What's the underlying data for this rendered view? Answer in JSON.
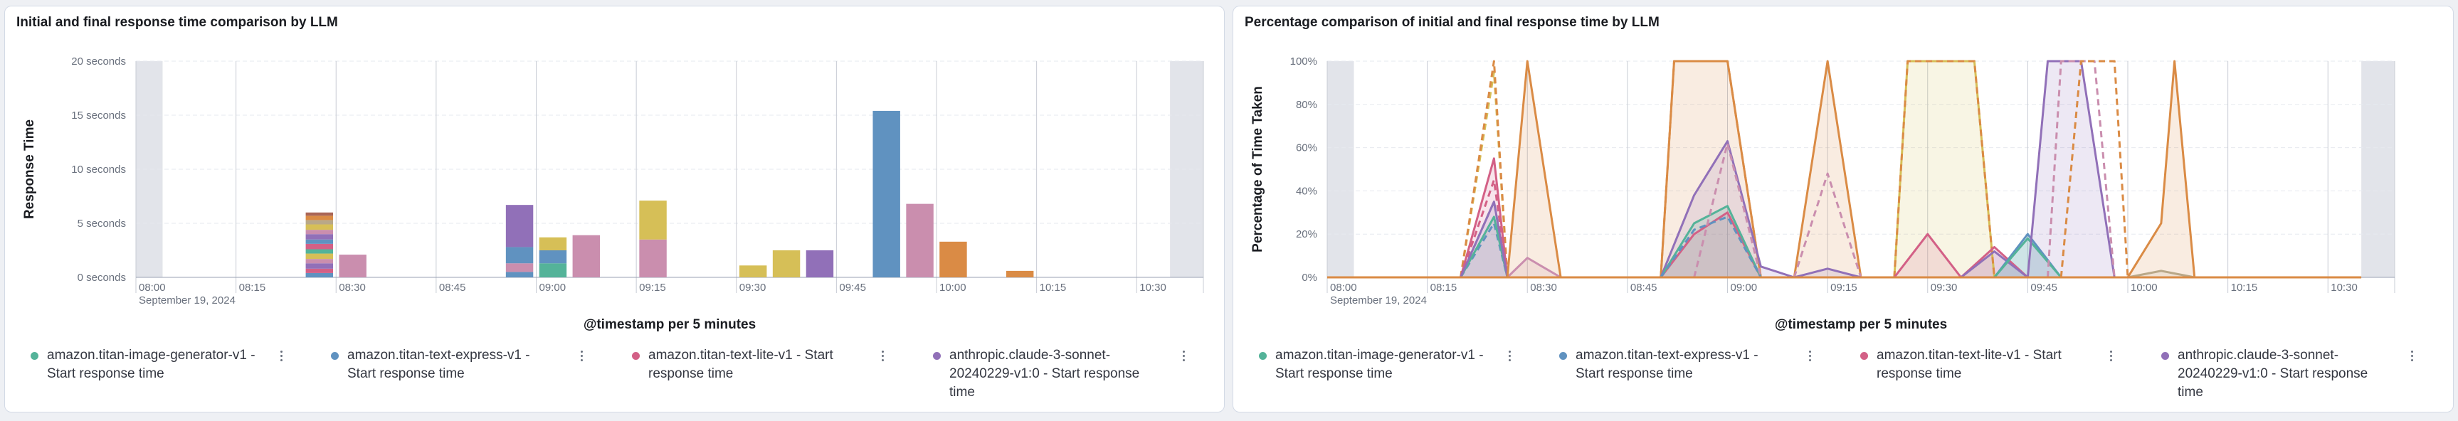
{
  "panels": [
    {
      "title": "Initial and final response time comparison by LLM",
      "legend": [
        {
          "label": "amazon.titan-image-generator-v1 - Start response time",
          "color": "#54b399"
        },
        {
          "label": "amazon.titan-text-express-v1 - Start response time",
          "color": "#6092c0"
        },
        {
          "label": "amazon.titan-text-lite-v1 - Start response time",
          "color": "#d36086"
        },
        {
          "label": "anthropic.claude-3-sonnet-20240229-v1:0 - Start response time",
          "color": "#9170b8"
        }
      ]
    },
    {
      "title": "Percentage comparison of initial and final response time by LLM",
      "legend": [
        {
          "label": "amazon.titan-image-generator-v1 - Start response time",
          "color": "#54b399"
        },
        {
          "label": "amazon.titan-text-express-v1 - Start response time",
          "color": "#6092c0"
        },
        {
          "label": "amazon.titan-text-lite-v1 - Start response time",
          "color": "#d36086"
        },
        {
          "label": "anthropic.claude-3-sonnet-20240229-v1:0 - Start response time",
          "color": "#9170b8"
        }
      ]
    }
  ],
  "chart_data": [
    {
      "type": "bar",
      "stacked": true,
      "title": "",
      "xlabel": "@timestamp per 5 minutes",
      "ylabel": "Response Time",
      "date_label": "September 19, 2024",
      "x_domain": [
        "08:00",
        "10:40"
      ],
      "x_ticks": [
        "08:00",
        "08:15",
        "08:30",
        "08:45",
        "09:00",
        "09:15",
        "09:30",
        "09:45",
        "10:00",
        "10:15",
        "10:30"
      ],
      "ylim": [
        0,
        20
      ],
      "y_ticks": [
        {
          "value": 0,
          "label": "0 seconds"
        },
        {
          "value": 5,
          "label": "5 seconds"
        },
        {
          "value": 10,
          "label": "10 seconds"
        },
        {
          "value": 15,
          "label": "15 seconds"
        },
        {
          "value": 20,
          "label": "20 seconds"
        }
      ],
      "grid": true,
      "shaded_x_ranges": [
        [
          "08:00",
          "08:04"
        ],
        [
          "10:35",
          "10:40"
        ]
      ],
      "bars": [
        {
          "x": "08:25",
          "segments": [
            {
              "value": 0.4,
              "color": "#6092c0"
            },
            {
              "value": 0.4,
              "color": "#d36086"
            },
            {
              "value": 0.5,
              "color": "#9170b8"
            },
            {
              "value": 0.4,
              "color": "#ca8eae"
            },
            {
              "value": 0.5,
              "color": "#d6bf57"
            },
            {
              "value": 0.4,
              "color": "#54b399"
            },
            {
              "value": 0.5,
              "color": "#d36086"
            },
            {
              "value": 0.4,
              "color": "#6092c0"
            },
            {
              "value": 0.5,
              "color": "#9170b8"
            },
            {
              "value": 0.4,
              "color": "#ca8eae"
            },
            {
              "value": 0.5,
              "color": "#d6bf57"
            },
            {
              "value": 0.4,
              "color": "#b9a888"
            },
            {
              "value": 0.4,
              "color": "#da8b45"
            },
            {
              "value": 0.3,
              "color": "#aa6556"
            }
          ]
        },
        {
          "x": "08:30",
          "segments": [
            {
              "value": 2.1,
              "color": "#ca8eae"
            }
          ]
        },
        {
          "x": "08:55",
          "segments": [
            {
              "value": 0.5,
              "color": "#6092c0"
            },
            {
              "value": 0.8,
              "color": "#ca8eae"
            },
            {
              "value": 1.5,
              "color": "#6092c0"
            },
            {
              "value": 3.9,
              "color": "#9170b8"
            }
          ]
        },
        {
          "x": "09:00",
          "segments": [
            {
              "value": 1.3,
              "color": "#54b399"
            },
            {
              "value": 1.2,
              "color": "#6092c0"
            },
            {
              "value": 1.2,
              "color": "#d6bf57"
            }
          ]
        },
        {
          "x": "09:05",
          "segments": [
            {
              "value": 3.9,
              "color": "#ca8eae"
            }
          ]
        },
        {
          "x": "09:15",
          "segments": [
            {
              "value": 3.5,
              "color": "#ca8eae"
            },
            {
              "value": 3.6,
              "color": "#d6bf57"
            }
          ]
        },
        {
          "x": "09:30",
          "segments": [
            {
              "value": 1.1,
              "color": "#d6bf57"
            }
          ]
        },
        {
          "x": "09:35",
          "segments": [
            {
              "value": 2.5,
              "color": "#d6bf57"
            }
          ]
        },
        {
          "x": "09:40",
          "segments": [
            {
              "value": 2.5,
              "color": "#9170b8"
            }
          ]
        },
        {
          "x": "09:50",
          "segments": [
            {
              "value": 15.4,
              "color": "#6092c0"
            }
          ]
        },
        {
          "x": "09:55",
          "segments": [
            {
              "value": 6.8,
              "color": "#ca8eae"
            }
          ]
        },
        {
          "x": "10:00",
          "segments": [
            {
              "value": 3.3,
              "color": "#da8b45"
            }
          ]
        },
        {
          "x": "10:10",
          "segments": [
            {
              "value": 0.6,
              "color": "#da8b45"
            }
          ]
        }
      ]
    },
    {
      "type": "area",
      "title": "",
      "xlabel": "@timestamp per 5 minutes",
      "ylabel": "Percentage of Time Taken",
      "date_label": "September 19, 2024",
      "x_domain": [
        "08:00",
        "10:40"
      ],
      "x_ticks": [
        "08:00",
        "08:15",
        "08:30",
        "08:45",
        "09:00",
        "09:15",
        "09:30",
        "09:45",
        "10:00",
        "10:15",
        "10:30"
      ],
      "ylim": [
        0,
        100
      ],
      "y_ticks": [
        {
          "value": 0,
          "label": "0%"
        },
        {
          "value": 20,
          "label": "20%"
        },
        {
          "value": 40,
          "label": "40%"
        },
        {
          "value": 60,
          "label": "60%"
        },
        {
          "value": 80,
          "label": "80%"
        },
        {
          "value": 100,
          "label": "100%"
        }
      ],
      "grid": true,
      "shaded_x_ranges": [
        [
          "08:00",
          "08:04"
        ],
        [
          "10:35",
          "10:40"
        ]
      ],
      "series": [
        {
          "color": "#54b399",
          "dashed": true,
          "values": [
            [
              "08:20",
              0
            ],
            [
              "08:25",
              35
            ],
            [
              "08:27",
              0
            ]
          ]
        },
        {
          "color": "#6092c0",
          "dashed": true,
          "values": [
            [
              "08:20",
              0
            ],
            [
              "08:25",
              25
            ],
            [
              "08:27",
              0
            ]
          ]
        },
        {
          "color": "#d36086",
          "dashed": true,
          "values": [
            [
              "08:20",
              0
            ],
            [
              "08:25",
              45
            ],
            [
              "08:27",
              0
            ]
          ]
        },
        {
          "color": "#d6bf57",
          "dashed": true,
          "values": [
            [
              "08:20",
              0
            ],
            [
              "08:25",
              95
            ],
            [
              "08:27",
              0
            ]
          ]
        },
        {
          "color": "#da8b45",
          "dashed": true,
          "values": [
            [
              "08:20",
              0
            ],
            [
              "08:25",
              100
            ],
            [
              "08:27",
              0
            ]
          ]
        },
        {
          "color": "#54b399",
          "dashed": false,
          "values": [
            [
              "08:20",
              0
            ],
            [
              "08:25",
              28
            ],
            [
              "08:27",
              0
            ]
          ]
        },
        {
          "color": "#d36086",
          "dashed": false,
          "values": [
            [
              "08:20",
              0
            ],
            [
              "08:25",
              55
            ],
            [
              "08:27",
              0
            ]
          ]
        },
        {
          "color": "#9170b8",
          "dashed": false,
          "values": [
            [
              "08:20",
              0
            ],
            [
              "08:25",
              35
            ],
            [
              "08:27",
              0
            ]
          ]
        },
        {
          "color": "#ca8eae",
          "dashed": false,
          "values": [
            [
              "08:27",
              0
            ],
            [
              "08:30",
              9
            ],
            [
              "08:35",
              0
            ]
          ]
        },
        {
          "color": "#da8b45",
          "dashed": false,
          "values": [
            [
              "08:27",
              0
            ],
            [
              "08:30",
              100
            ],
            [
              "08:35",
              0
            ]
          ]
        },
        {
          "color": "#da8b45",
          "dashed": false,
          "values": [
            [
              "08:50",
              0
            ],
            [
              "08:52",
              100
            ],
            [
              "09:00",
              100
            ],
            [
              "09:05",
              0
            ]
          ]
        },
        {
          "color": "#da8b45",
          "dashed": true,
          "values": [
            [
              "08:50",
              0
            ],
            [
              "08:52",
              100
            ],
            [
              "09:00",
              100
            ],
            [
              "09:05",
              0
            ]
          ]
        },
        {
          "color": "#9170b8",
          "dashed": false,
          "values": [
            [
              "08:50",
              0
            ],
            [
              "08:55",
              38
            ],
            [
              "09:00",
              63
            ],
            [
              "09:05",
              5
            ],
            [
              "09:10",
              0
            ]
          ]
        },
        {
          "color": "#d36086",
          "dashed": false,
          "values": [
            [
              "08:50",
              0
            ],
            [
              "08:55",
              20
            ],
            [
              "09:00",
              30
            ],
            [
              "09:05",
              0
            ]
          ]
        },
        {
          "color": "#54b399",
          "dashed": false,
          "values": [
            [
              "08:50",
              0
            ],
            [
              "08:55",
              25
            ],
            [
              "09:00",
              33
            ],
            [
              "09:05",
              0
            ]
          ]
        },
        {
          "color": "#6092c0",
          "dashed": true,
          "values": [
            [
              "08:50",
              0
            ],
            [
              "08:55",
              22
            ],
            [
              "09:00",
              28
            ],
            [
              "09:05",
              0
            ]
          ]
        },
        {
          "color": "#ca8eae",
          "dashed": true,
          "values": [
            [
              "08:55",
              0
            ],
            [
              "09:00",
              62
            ],
            [
              "09:05",
              0
            ]
          ]
        },
        {
          "color": "#da8b45",
          "dashed": false,
          "values": [
            [
              "09:10",
              0
            ],
            [
              "09:15",
              100
            ],
            [
              "09:20",
              0
            ]
          ]
        },
        {
          "color": "#ca8eae",
          "dashed": true,
          "values": [
            [
              "09:10",
              0
            ],
            [
              "09:15",
              48
            ],
            [
              "09:20",
              0
            ]
          ]
        },
        {
          "color": "#9170b8",
          "dashed": false,
          "values": [
            [
              "09:10",
              0
            ],
            [
              "09:15",
              4
            ],
            [
              "09:20",
              0
            ]
          ]
        },
        {
          "color": "#d6bf57",
          "dashed": false,
          "values": [
            [
              "09:25",
              0
            ],
            [
              "09:27",
              100
            ],
            [
              "09:37",
              100
            ],
            [
              "09:40",
              0
            ]
          ]
        },
        {
          "color": "#da8b45",
          "dashed": true,
          "values": [
            [
              "09:25",
              0
            ],
            [
              "09:27",
              100
            ],
            [
              "09:37",
              100
            ],
            [
              "09:40",
              0
            ]
          ]
        },
        {
          "color": "#d36086",
          "dashed": false,
          "values": [
            [
              "09:25",
              0
            ],
            [
              "09:30",
              20
            ],
            [
              "09:35",
              0
            ],
            [
              "09:40",
              14
            ],
            [
              "09:45",
              0
            ]
          ]
        },
        {
          "color": "#9170b8",
          "dashed": false,
          "values": [
            [
              "09:35",
              0
            ],
            [
              "09:40",
              12
            ],
            [
              "09:45",
              0
            ]
          ]
        },
        {
          "color": "#6092c0",
          "dashed": false,
          "values": [
            [
              "09:40",
              0
            ],
            [
              "09:45",
              20
            ],
            [
              "09:50",
              0
            ]
          ]
        },
        {
          "color": "#54b399",
          "dashed": false,
          "values": [
            [
              "09:40",
              0
            ],
            [
              "09:45",
              18
            ],
            [
              "09:50",
              0
            ]
          ]
        },
        {
          "color": "#9170b8",
          "dashed": false,
          "values": [
            [
              "09:45",
              0
            ],
            [
              "09:48",
              100
            ],
            [
              "09:53",
              100
            ],
            [
              "09:58",
              0
            ]
          ]
        },
        {
          "color": "#ca8eae",
          "dashed": true,
          "values": [
            [
              "09:48",
              0
            ],
            [
              "09:50",
              100
            ],
            [
              "09:55",
              100
            ],
            [
              "09:58",
              0
            ]
          ]
        },
        {
          "color": "#da8b45",
          "dashed": true,
          "values": [
            [
              "09:50",
              0
            ],
            [
              "09:53",
              100
            ],
            [
              "09:58",
              100
            ],
            [
              "10:00",
              0
            ]
          ]
        },
        {
          "color": "#da8b45",
          "dashed": false,
          "values": [
            [
              "09:55",
              0
            ],
            [
              "10:00",
              0
            ],
            [
              "10:05",
              25
            ],
            [
              "10:07",
              100
            ],
            [
              "10:10",
              0
            ]
          ]
        },
        {
          "color": "#b9a888",
          "dashed": false,
          "values": [
            [
              "10:00",
              0
            ],
            [
              "10:05",
              3
            ],
            [
              "10:10",
              0
            ]
          ]
        },
        {
          "color": "#54b399",
          "dashed": true,
          "values": [
            [
              "08:00",
              0
            ],
            [
              "10:35",
              0
            ]
          ]
        },
        {
          "color": "#da8b45",
          "dashed": false,
          "values": [
            [
              "08:00",
              0
            ],
            [
              "10:35",
              0
            ]
          ]
        }
      ]
    }
  ]
}
